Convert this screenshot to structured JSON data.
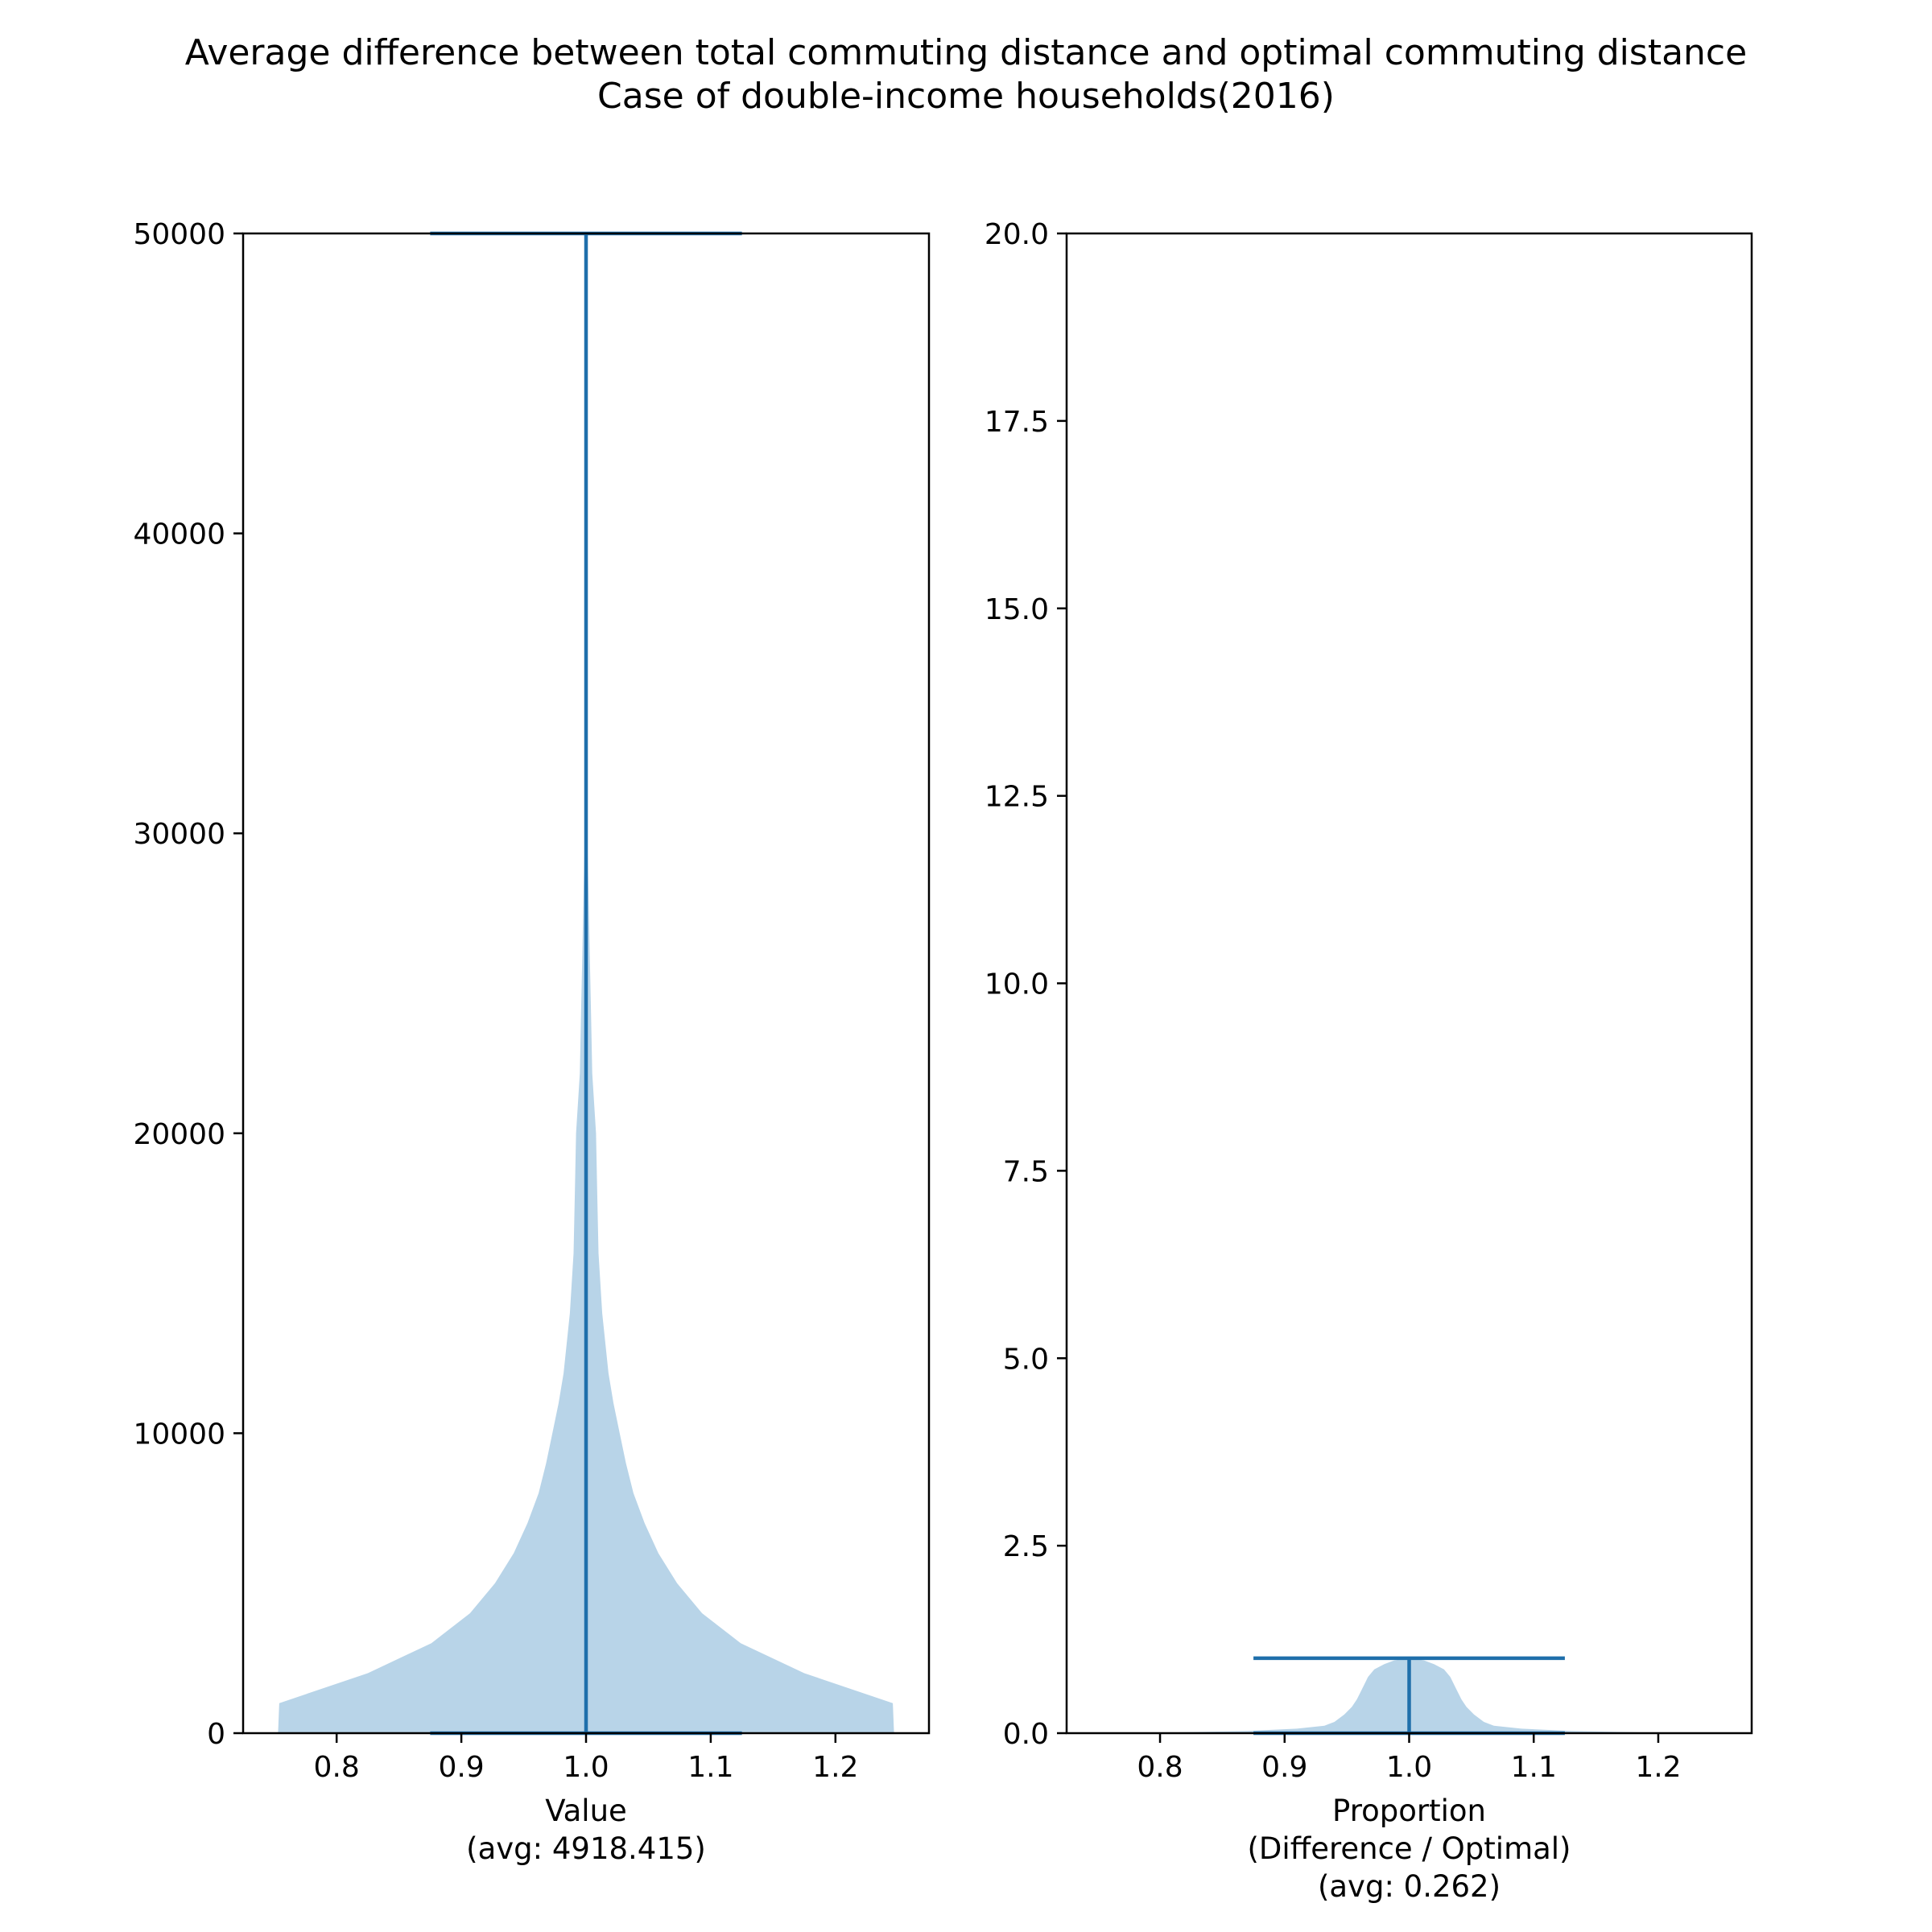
{
  "title": "Average difference between total commuting distance and optimal commuting distance",
  "subtitle": "Case of double-income households(2016)",
  "colors": {
    "fill": "#b8d4e8",
    "line": "#1f6fab",
    "axis": "#000000"
  },
  "chart_data": [
    {
      "type": "violin",
      "xlabel": [
        "Value",
        "(avg: 4918.415)"
      ],
      "xticks": [
        "0.8",
        "0.9",
        "1.0",
        "1.1",
        "1.2"
      ],
      "yticks": [
        "0",
        "10000",
        "20000",
        "30000",
        "40000",
        "50000"
      ],
      "xlim": [
        0.725,
        1.275
      ],
      "ylim": [
        0,
        50000
      ],
      "position": 1.0,
      "extrema": {
        "min": 0,
        "max": 50000,
        "bar_half_width": 0.125
      },
      "profile": [
        [
          0,
          0.247
        ],
        [
          1000,
          0.246
        ],
        [
          2000,
          0.175
        ],
        [
          3000,
          0.124
        ],
        [
          4000,
          0.093
        ],
        [
          5000,
          0.073
        ],
        [
          6000,
          0.058
        ],
        [
          7000,
          0.047
        ],
        [
          8000,
          0.038
        ],
        [
          9000,
          0.032
        ],
        [
          10000,
          0.027
        ],
        [
          11000,
          0.022
        ],
        [
          12000,
          0.018
        ],
        [
          14000,
          0.013
        ],
        [
          16000,
          0.01
        ],
        [
          18000,
          0.009
        ],
        [
          20000,
          0.008
        ],
        [
          22000,
          0.005
        ],
        [
          24000,
          0.004
        ],
        [
          26000,
          0.003
        ],
        [
          28000,
          0.002
        ],
        [
          30000,
          0.001
        ],
        [
          32000,
          0.0005
        ],
        [
          34000,
          0.0
        ]
      ]
    },
    {
      "type": "violin",
      "xlabel": [
        "Proportion",
        "(Difference / Optimal)",
        "(avg: 0.262)"
      ],
      "xticks": [
        "0.8",
        "0.9",
        "1.0",
        "1.1",
        "1.2"
      ],
      "yticks": [
        "0.0",
        "2.5",
        "5.0",
        "7.5",
        "10.0",
        "12.5",
        "15.0",
        "17.5",
        "20.0"
      ],
      "xlim": [
        0.725,
        1.275
      ],
      "ylim": [
        0,
        20
      ],
      "position": 1.0,
      "extrema": {
        "min": 0,
        "max": 1.0,
        "bar_half_width": 0.125
      },
      "profile": [
        [
          0,
          0.245
        ],
        [
          0.01,
          0.19
        ],
        [
          0.03,
          0.13
        ],
        [
          0.06,
          0.09
        ],
        [
          0.1,
          0.068
        ],
        [
          0.15,
          0.06
        ],
        [
          0.25,
          0.052
        ],
        [
          0.35,
          0.046
        ],
        [
          0.45,
          0.042
        ],
        [
          0.55,
          0.039
        ],
        [
          0.65,
          0.036
        ],
        [
          0.75,
          0.033
        ],
        [
          0.85,
          0.028
        ],
        [
          0.92,
          0.02
        ],
        [
          0.97,
          0.012
        ],
        [
          1.0,
          0.0
        ]
      ]
    }
  ]
}
